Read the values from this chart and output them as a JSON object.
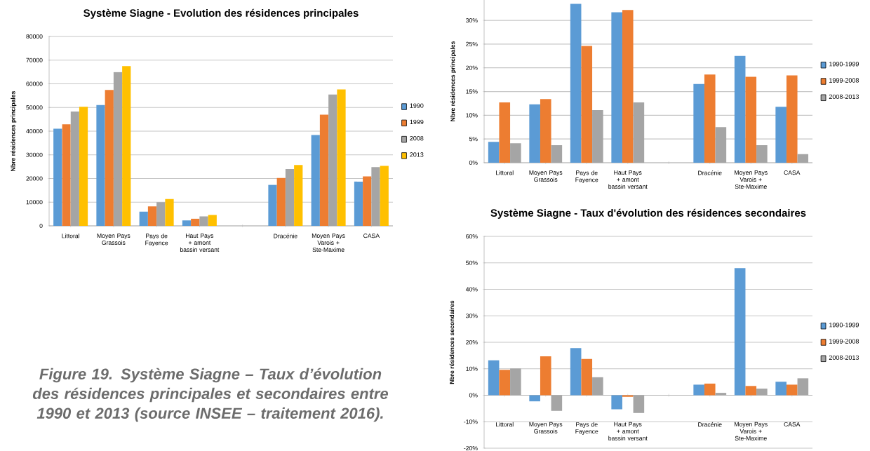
{
  "chart_data": [
    {
      "type": "bar",
      "title": "Système Siagne - Evolution des résidences principales",
      "ylabel": "Nbre résidences principales",
      "categories": [
        "Littoral",
        "Moyen Pays Grassois",
        "Pays de Fayence",
        "Haut Pays + amont bassin versant",
        null,
        "Dracénie",
        "Moyen Pays Varois + Ste-Maxime",
        "CASA"
      ],
      "series": [
        {
          "name": "1990",
          "color": "#5b9bd5",
          "values": [
            41000,
            51000,
            6000,
            2300,
            null,
            17300,
            38400,
            18700
          ]
        },
        {
          "name": "1999",
          "color": "#ed7d31",
          "values": [
            42900,
            57400,
            8200,
            3000,
            null,
            20200,
            47000,
            20900
          ]
        },
        {
          "name": "2008",
          "color": "#a5a5a5",
          "values": [
            48300,
            65000,
            10000,
            4000,
            null,
            24000,
            55500,
            24800
          ]
        },
        {
          "name": "2013",
          "color": "#ffc000",
          "values": [
            50300,
            67500,
            11300,
            4600,
            null,
            25700,
            57600,
            25300
          ]
        }
      ],
      "ylim": [
        0,
        80000
      ],
      "yticks": [
        0,
        10000,
        20000,
        30000,
        40000,
        50000,
        60000,
        70000,
        80000
      ],
      "grid": "y",
      "legend": "right",
      "annotations": [
        "Figure 19. Système Siagne – Taux d’évolution des résidences principales et secondaires entre 1990 et 2013 (source INSEE – traitement 2016)."
      ]
    },
    {
      "type": "bar",
      "ylabel": "Nbre résidences principales",
      "categories": [
        "Littoral",
        "Moyen Pays Grassois",
        "Pays de Fayence",
        "Haut Pays + amont bassin versant",
        null,
        "Dracénie",
        "Moyen Pays Varois + Ste-Maxime",
        "CASA"
      ],
      "series": [
        {
          "name": "1990-1999",
          "color": "#5b9bd5",
          "values": [
            4.4,
            12.3,
            33.5,
            31.7,
            null,
            16.6,
            22.5,
            11.8
          ]
        },
        {
          "name": "1999-2008",
          "color": "#ed7d31",
          "values": [
            12.7,
            13.4,
            24.6,
            32.2,
            null,
            18.6,
            18.1,
            18.4
          ]
        },
        {
          "name": "2008-2013",
          "color": "#a5a5a5",
          "values": [
            4.1,
            3.7,
            11.1,
            12.7,
            null,
            7.5,
            3.7,
            1.8
          ]
        }
      ],
      "ylim": [
        0,
        34.3
      ],
      "yticks": [
        {
          "value": 0,
          "label": "0%"
        },
        {
          "value": 5,
          "label": "5%"
        },
        {
          "value": 10,
          "label": "10%"
        },
        {
          "value": 15,
          "label": "15%"
        },
        {
          "value": 20,
          "label": "20%"
        },
        {
          "value": 25,
          "label": "25%"
        },
        {
          "value": 30,
          "label": "30%"
        }
      ],
      "grid": "y",
      "legend": "right"
    },
    {
      "type": "bar",
      "title": "Système Siagne - Taux d'évolution des résidences secondaires",
      "ylabel": "Nbre résidences secondaires",
      "categories": [
        "Littoral",
        "Moyen Pays Grassois",
        "Pays de Fayence",
        "Haut Pays + amont bassin versant",
        null,
        "Dracénie",
        "Moyen Pays Varois + Ste-Maxime",
        "CASA"
      ],
      "series": [
        {
          "name": "1990-1999",
          "color": "#5b9bd5",
          "values": [
            13.2,
            -2.3,
            17.8,
            -5.3,
            null,
            4.0,
            48.0,
            5.1
          ]
        },
        {
          "name": "1999-2008",
          "color": "#ed7d31",
          "values": [
            9.6,
            14.7,
            13.7,
            -0.6,
            null,
            4.4,
            3.5,
            4.0
          ]
        },
        {
          "name": "2008-2013",
          "color": "#a5a5a5",
          "values": [
            10.1,
            -5.9,
            6.8,
            -6.7,
            null,
            0.9,
            2.5,
            6.4
          ]
        }
      ],
      "ylim": [
        -20,
        60
      ],
      "yticks": [
        {
          "value": -20,
          "label": "-20%"
        },
        {
          "value": -10,
          "label": "-10%"
        },
        {
          "value": 0,
          "label": "0%"
        },
        {
          "value": 10,
          "label": "10%"
        },
        {
          "value": 20,
          "label": "20%"
        },
        {
          "value": 30,
          "label": "30%"
        },
        {
          "value": 40,
          "label": "40%"
        },
        {
          "value": 50,
          "label": "50%"
        },
        {
          "value": 60,
          "label": "60%"
        }
      ],
      "grid": "y",
      "legend": "right"
    }
  ]
}
